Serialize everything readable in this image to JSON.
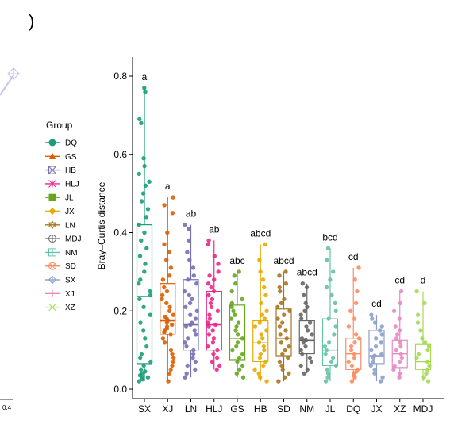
{
  "colors": {
    "SX": "#1b9e77",
    "XJ": "#d95f02",
    "LN": "#7570b3",
    "HLJ": "#e7298a",
    "GS": "#66a61e",
    "HB": "#e6ab02",
    "SD": "#a6761d",
    "NM": "#666666",
    "JL": "#66c2a5",
    "DQ": "#fc8d62",
    "JX": "#8da0cb",
    "XZ": "#e78ac3",
    "MDJ": "#a6d854"
  },
  "legend": {
    "title": "Group",
    "items": [
      {
        "label": "DQ",
        "color": "#1b9e77",
        "icon": "circle"
      },
      {
        "label": "GS",
        "color": "#d95f02",
        "icon": "triangle"
      },
      {
        "label": "HB",
        "color": "#7570b3",
        "icon": "boxed-x"
      },
      {
        "label": "HLJ",
        "color": "#e7298a",
        "icon": "asterisk"
      },
      {
        "label": "JL",
        "color": "#66a61e",
        "icon": "square"
      },
      {
        "label": "JX",
        "color": "#e6ab02",
        "icon": "diamond"
      },
      {
        "label": "LN",
        "color": "#a6761d",
        "icon": "star-of-david"
      },
      {
        "label": "MDJ",
        "color": "#666666",
        "icon": "circle-plus"
      },
      {
        "label": "NM",
        "color": "#66c2a5",
        "icon": "boxed-plus"
      },
      {
        "label": "SD",
        "color": "#fc8d62",
        "icon": "circle-cross"
      },
      {
        "label": "SX",
        "color": "#8da0cb",
        "icon": "diamond-plus"
      },
      {
        "label": "XJ",
        "color": "#e78ac3",
        "icon": "plus"
      },
      {
        "label": "XZ",
        "color": "#a6d854",
        "icon": "cross"
      }
    ]
  },
  "left_panel": {
    "partial_text": ")",
    "axis_tick": "0.4",
    "line_color": "#c7c3e8"
  },
  "chart_data": {
    "type": "box",
    "ylabel": "Bray–Curtis distance",
    "xlabel": "",
    "ylim": [
      -0.02,
      0.84
    ],
    "yticks": [
      0.0,
      0.2,
      0.4,
      0.6,
      0.8
    ],
    "ytick_labels": [
      "0.0",
      "0.2",
      "0.4",
      "0.6",
      "0.8"
    ],
    "categories": [
      "SX",
      "XJ",
      "LN",
      "HLJ",
      "GS",
      "HB",
      "SD",
      "NM",
      "JL",
      "DQ",
      "JX",
      "XZ",
      "MDJ"
    ],
    "significance": [
      "a",
      "a",
      "ab",
      "ab",
      "abc",
      "abcd",
      "abcd",
      "abcd",
      "bcd",
      "cd",
      "cd",
      "cd",
      "d"
    ],
    "boxes": [
      {
        "group": "SX",
        "min": 0.02,
        "q1": 0.065,
        "median": 0.237,
        "q3": 0.42,
        "max": 0.77
      },
      {
        "group": "XJ",
        "min": 0.02,
        "q1": 0.14,
        "median": 0.175,
        "q3": 0.27,
        "max": 0.49
      },
      {
        "group": "LN",
        "min": 0.03,
        "q1": 0.1,
        "median": 0.165,
        "q3": 0.28,
        "max": 0.42
      },
      {
        "group": "HLJ",
        "min": 0.05,
        "q1": 0.1,
        "median": 0.165,
        "q3": 0.25,
        "max": 0.38
      },
      {
        "group": "GS",
        "min": 0.03,
        "q1": 0.075,
        "median": 0.13,
        "q3": 0.215,
        "max": 0.3
      },
      {
        "group": "HB",
        "min": 0.02,
        "q1": 0.07,
        "median": 0.12,
        "q3": 0.175,
        "max": 0.37
      },
      {
        "group": "SD",
        "min": 0.02,
        "q1": 0.085,
        "median": 0.13,
        "q3": 0.205,
        "max": 0.3
      },
      {
        "group": "NM",
        "min": 0.04,
        "q1": 0.09,
        "median": 0.125,
        "q3": 0.175,
        "max": 0.27
      },
      {
        "group": "JL",
        "min": 0.02,
        "q1": 0.06,
        "median": 0.1,
        "q3": 0.18,
        "max": 0.36
      },
      {
        "group": "DQ",
        "min": 0.02,
        "q1": 0.05,
        "median": 0.09,
        "q3": 0.13,
        "max": 0.31
      },
      {
        "group": "JX",
        "min": 0.02,
        "q1": 0.065,
        "median": 0.085,
        "q3": 0.15,
        "max": 0.19
      },
      {
        "group": "XZ",
        "min": 0.03,
        "q1": 0.055,
        "median": 0.09,
        "q3": 0.125,
        "max": 0.25
      },
      {
        "group": "MDJ",
        "min": 0.02,
        "q1": 0.05,
        "median": 0.07,
        "q3": 0.115,
        "max": 0.25
      }
    ],
    "points": {
      "SX": [
        0.77,
        0.76,
        0.69,
        0.68,
        0.59,
        0.57,
        0.55,
        0.53,
        0.52,
        0.5,
        0.48,
        0.46,
        0.44,
        0.42,
        0.4,
        0.38,
        0.36,
        0.34,
        0.32,
        0.3,
        0.28,
        0.27,
        0.25,
        0.24,
        0.23,
        0.21,
        0.19,
        0.17,
        0.15,
        0.13,
        0.11,
        0.09,
        0.08,
        0.07,
        0.06,
        0.05,
        0.045,
        0.04,
        0.035,
        0.03,
        0.03,
        0.025,
        0.02
      ],
      "XJ": [
        0.49,
        0.47,
        0.45,
        0.4,
        0.37,
        0.35,
        0.33,
        0.31,
        0.29,
        0.28,
        0.26,
        0.25,
        0.24,
        0.23,
        0.22,
        0.21,
        0.2,
        0.19,
        0.185,
        0.18,
        0.175,
        0.17,
        0.165,
        0.16,
        0.155,
        0.15,
        0.145,
        0.14,
        0.13,
        0.12,
        0.1,
        0.09,
        0.08,
        0.07,
        0.06,
        0.05,
        0.04,
        0.02
      ],
      "LN": [
        0.42,
        0.41,
        0.38,
        0.35,
        0.33,
        0.31,
        0.29,
        0.28,
        0.27,
        0.25,
        0.24,
        0.23,
        0.22,
        0.21,
        0.2,
        0.19,
        0.18,
        0.17,
        0.165,
        0.16,
        0.15,
        0.14,
        0.13,
        0.12,
        0.11,
        0.1,
        0.09,
        0.08,
        0.07,
        0.06,
        0.05,
        0.04,
        0.03
      ],
      "HLJ": [
        0.38,
        0.37,
        0.34,
        0.32,
        0.3,
        0.29,
        0.28,
        0.27,
        0.26,
        0.25,
        0.24,
        0.23,
        0.22,
        0.21,
        0.2,
        0.19,
        0.18,
        0.17,
        0.165,
        0.16,
        0.15,
        0.14,
        0.13,
        0.12,
        0.11,
        0.1,
        0.09,
        0.08,
        0.07,
        0.06,
        0.05
      ],
      "GS": [
        0.3,
        0.29,
        0.27,
        0.25,
        0.23,
        0.22,
        0.21,
        0.2,
        0.19,
        0.18,
        0.17,
        0.16,
        0.15,
        0.14,
        0.13,
        0.12,
        0.11,
        0.1,
        0.09,
        0.08,
        0.07,
        0.06,
        0.05,
        0.04,
        0.03
      ],
      "HB": [
        0.37,
        0.33,
        0.3,
        0.28,
        0.26,
        0.24,
        0.22,
        0.2,
        0.19,
        0.18,
        0.17,
        0.16,
        0.15,
        0.14,
        0.13,
        0.12,
        0.11,
        0.1,
        0.09,
        0.08,
        0.07,
        0.06,
        0.05,
        0.04,
        0.03,
        0.02
      ],
      "SD": [
        0.3,
        0.29,
        0.27,
        0.26,
        0.25,
        0.23,
        0.22,
        0.21,
        0.2,
        0.19,
        0.18,
        0.17,
        0.16,
        0.15,
        0.14,
        0.13,
        0.12,
        0.11,
        0.1,
        0.09,
        0.08,
        0.07,
        0.06,
        0.05,
        0.04,
        0.03,
        0.02
      ],
      "NM": [
        0.27,
        0.26,
        0.24,
        0.22,
        0.21,
        0.2,
        0.19,
        0.18,
        0.17,
        0.16,
        0.15,
        0.14,
        0.13,
        0.125,
        0.12,
        0.11,
        0.1,
        0.09,
        0.08,
        0.07,
        0.06,
        0.05,
        0.04
      ],
      "JL": [
        0.36,
        0.33,
        0.3,
        0.28,
        0.26,
        0.24,
        0.22,
        0.2,
        0.18,
        0.16,
        0.14,
        0.12,
        0.11,
        0.1,
        0.09,
        0.08,
        0.07,
        0.06,
        0.05,
        0.04,
        0.03,
        0.02
      ],
      "DQ": [
        0.31,
        0.28,
        0.25,
        0.22,
        0.2,
        0.18,
        0.16,
        0.14,
        0.13,
        0.12,
        0.11,
        0.1,
        0.09,
        0.08,
        0.07,
        0.06,
        0.05,
        0.045,
        0.04,
        0.035,
        0.03,
        0.02
      ],
      "JX": [
        0.19,
        0.18,
        0.17,
        0.16,
        0.15,
        0.14,
        0.13,
        0.12,
        0.11,
        0.1,
        0.09,
        0.085,
        0.08,
        0.07,
        0.06,
        0.05,
        0.04,
        0.03,
        0.02
      ],
      "XZ": [
        0.25,
        0.22,
        0.2,
        0.18,
        0.16,
        0.15,
        0.14,
        0.13,
        0.12,
        0.11,
        0.1,
        0.09,
        0.08,
        0.07,
        0.06,
        0.05,
        0.04,
        0.03
      ],
      "MDJ": [
        0.25,
        0.22,
        0.19,
        0.17,
        0.15,
        0.13,
        0.12,
        0.11,
        0.1,
        0.09,
        0.08,
        0.07,
        0.06,
        0.05,
        0.04,
        0.03,
        0.02
      ]
    }
  }
}
